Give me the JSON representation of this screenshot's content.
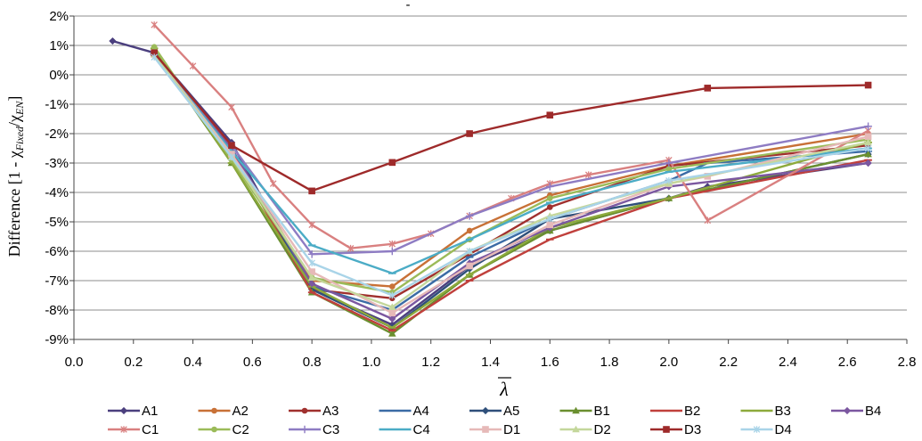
{
  "chart_data": {
    "type": "line",
    "title": "-",
    "ylabel": "Difference [1 - χ_Fixed/χ_EN]",
    "ylabel_parts": {
      "prefix": "Difference [1 - χ",
      "sub1": "Fixed",
      "mid": "/χ",
      "sub2": "EN",
      "suffix": "]"
    },
    "xlabel": "λ̄",
    "xlabel_glyph": "λ",
    "xlim": [
      0.0,
      2.8
    ],
    "ylim": [
      -9,
      2
    ],
    "x_ticks": [
      "0.0",
      "0.2",
      "0.4",
      "0.6",
      "0.8",
      "1.0",
      "1.2",
      "1.4",
      "1.6",
      "1.8",
      "2.0",
      "2.2",
      "2.4",
      "2.6",
      "2.8"
    ],
    "x_tick_values": [
      0,
      0.2,
      0.4,
      0.6,
      0.8,
      1.0,
      1.2,
      1.4,
      1.6,
      1.8,
      2.0,
      2.2,
      2.4,
      2.6,
      2.8
    ],
    "y_ticks": [
      "2%",
      "1%",
      "0%",
      "-1%",
      "-2%",
      "-3%",
      "-4%",
      "-5%",
      "-6%",
      "-7%",
      "-8%",
      "-9%"
    ],
    "y_tick_values": [
      2,
      1,
      0,
      -1,
      -2,
      -3,
      -4,
      -5,
      -6,
      -7,
      -8,
      -9
    ],
    "grid": "horizontal",
    "legend_position": "bottom",
    "series": [
      {
        "name": "A1",
        "color": "#4B3F7E",
        "marker": "diamond",
        "x": [
          0.13,
          0.27,
          0.53,
          0.8,
          1.07,
          1.33,
          1.6,
          2.0,
          2.13,
          2.67
        ],
        "y": [
          1.15,
          0.75,
          -2.3,
          -7.3,
          -8.5,
          -6.5,
          -5.3,
          -4.2,
          -3.8,
          -3.0
        ]
      },
      {
        "name": "A2",
        "color": "#C87137",
        "marker": "circle",
        "x": [
          0.27,
          0.53,
          0.8,
          1.07,
          1.33,
          1.6,
          2.0,
          2.67
        ],
        "y": [
          0.7,
          -2.6,
          -7.0,
          -7.2,
          -5.3,
          -4.1,
          -3.1,
          -2.0
        ]
      },
      {
        "name": "A3",
        "color": "#A0302E",
        "marker": "circle",
        "x": [
          0.27,
          0.53,
          0.8,
          1.07,
          1.33,
          1.6,
          2.0,
          2.67
        ],
        "y": [
          0.8,
          -2.5,
          -7.3,
          -7.6,
          -6.1,
          -4.5,
          -3.1,
          -2.4
        ]
      },
      {
        "name": "A4",
        "color": "#3B6BA5",
        "marker": "dash",
        "x": [
          0.27,
          0.53,
          0.8,
          1.07,
          1.33,
          1.6,
          2.0,
          2.13,
          2.67
        ],
        "y": [
          0.7,
          -2.5,
          -7.2,
          -8.0,
          -6.2,
          -4.9,
          -3.6,
          -3.0,
          -2.6
        ]
      },
      {
        "name": "A5",
        "color": "#2F4F7A",
        "marker": "diamond",
        "x": [
          0.27,
          0.53,
          0.8,
          1.07,
          1.33,
          1.6,
          2.0,
          2.67
        ],
        "y": [
          0.7,
          -2.6,
          -7.3,
          -8.6,
          -6.6,
          -4.9,
          -4.2,
          -2.7
        ]
      },
      {
        "name": "B1",
        "color": "#6A8F2F",
        "marker": "triangle",
        "x": [
          0.27,
          0.53,
          0.8,
          1.07,
          1.33,
          1.6,
          2.0,
          2.67
        ],
        "y": [
          0.8,
          -3.0,
          -7.4,
          -8.8,
          -6.8,
          -5.3,
          -4.2,
          -2.7
        ]
      },
      {
        "name": "B2",
        "color": "#C0403C",
        "marker": "dash",
        "x": [
          0.27,
          0.53,
          0.8,
          1.07,
          1.33,
          1.6,
          2.0,
          2.67
        ],
        "y": [
          0.7,
          -2.6,
          -7.4,
          -8.7,
          -7.0,
          -5.6,
          -4.2,
          -2.9
        ]
      },
      {
        "name": "B3",
        "color": "#8DAA3C",
        "marker": "dash",
        "x": [
          0.27,
          0.53,
          0.8,
          1.07,
          1.33,
          1.6,
          2.0,
          2.67
        ],
        "y": [
          0.9,
          -3.0,
          -7.2,
          -8.6,
          -6.8,
          -5.2,
          -4.2,
          -2.3
        ]
      },
      {
        "name": "B4",
        "color": "#7B57A0",
        "marker": "diamond",
        "x": [
          0.27,
          0.53,
          0.8,
          1.07,
          1.33,
          1.6,
          2.0,
          2.67
        ],
        "y": [
          0.7,
          -2.5,
          -7.1,
          -8.3,
          -6.4,
          -5.2,
          -3.8,
          -3.0
        ]
      },
      {
        "name": "C1",
        "color": "#D98080",
        "marker": "star",
        "x": [
          0.27,
          0.4,
          0.53,
          0.67,
          0.8,
          0.93,
          1.07,
          1.2,
          1.33,
          1.47,
          1.6,
          1.73,
          2.0,
          2.13,
          2.67
        ],
        "y": [
          1.7,
          0.3,
          -1.1,
          -3.7,
          -5.1,
          -5.9,
          -5.75,
          -5.4,
          -4.8,
          -4.2,
          -3.7,
          -3.4,
          -2.9,
          -4.95,
          -1.9
        ]
      },
      {
        "name": "C2",
        "color": "#9BBB59",
        "marker": "circle",
        "x": [
          0.27,
          0.53,
          0.8,
          1.07,
          1.33,
          1.6,
          2.0,
          2.67
        ],
        "y": [
          0.95,
          -2.9,
          -6.9,
          -7.4,
          -5.6,
          -4.2,
          -3.2,
          -2.2
        ]
      },
      {
        "name": "C3",
        "color": "#8E7CC3",
        "marker": "plus",
        "x": [
          0.27,
          0.53,
          0.8,
          1.07,
          1.33,
          1.6,
          2.0,
          2.67
        ],
        "y": [
          0.7,
          -2.4,
          -6.1,
          -6.0,
          -4.8,
          -3.8,
          -3.0,
          -1.75
        ]
      },
      {
        "name": "C4",
        "color": "#4BACC6",
        "marker": "dash",
        "x": [
          0.27,
          0.53,
          0.8,
          1.07,
          1.33,
          1.6,
          2.0,
          2.67
        ],
        "y": [
          0.7,
          -2.6,
          -5.8,
          -6.75,
          -5.6,
          -4.35,
          -3.3,
          -2.5
        ]
      },
      {
        "name": "D1",
        "color": "#E6B9B8",
        "marker": "square",
        "x": [
          0.27,
          0.53,
          0.8,
          1.07,
          1.33,
          1.6,
          2.0,
          2.13,
          2.67
        ],
        "y": [
          0.7,
          -2.7,
          -6.7,
          -8.1,
          -6.5,
          -5.1,
          -3.7,
          -3.45,
          -2.1
        ]
      },
      {
        "name": "D2",
        "color": "#C4D79B",
        "marker": "triangle",
        "x": [
          0.27,
          0.53,
          0.8,
          1.07,
          1.33,
          1.6,
          2.0,
          2.67
        ],
        "y": [
          0.7,
          -2.8,
          -6.9,
          -7.9,
          -6.0,
          -4.8,
          -3.7,
          -2.3
        ]
      },
      {
        "name": "D3",
        "color": "#9E2A2A",
        "marker": "square",
        "x": [
          0.27,
          0.53,
          0.8,
          1.07,
          1.33,
          1.6,
          2.13,
          2.67
        ],
        "y": [
          0.75,
          -2.4,
          -3.95,
          -2.98,
          -2.0,
          -1.37,
          -0.45,
          -0.35
        ]
      },
      {
        "name": "D4",
        "color": "#A9D4E8",
        "marker": "star",
        "x": [
          0.27,
          0.53,
          0.8,
          1.07,
          1.33,
          1.6,
          2.0,
          2.67
        ],
        "y": [
          0.6,
          -2.8,
          -6.4,
          -7.5,
          -6.0,
          -4.9,
          -3.6,
          -2.5
        ]
      }
    ]
  }
}
